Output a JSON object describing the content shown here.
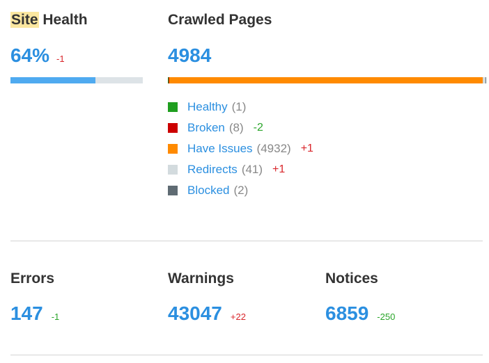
{
  "site_health": {
    "title_highlight": "Site",
    "title_rest": " Health",
    "value": "64%",
    "delta": "-1",
    "progress": 0.64,
    "colors": {
      "fill": "#4faaf0",
      "track": "#dde3e7"
    }
  },
  "crawled_pages": {
    "title": "Crawled Pages",
    "value": "4984",
    "legend": [
      {
        "label": "Healthy",
        "count": "(1)",
        "change": "",
        "color": "#1f9e1f"
      },
      {
        "label": "Broken",
        "count": "(8)",
        "change": "-2",
        "change_type": "pos",
        "color": "#cc0000"
      },
      {
        "label": "Have Issues",
        "count": "(4932)",
        "change": "+1",
        "change_type": "neg",
        "color": "#ff8a00"
      },
      {
        "label": "Redirects",
        "count": "(41)",
        "change": "+1",
        "change_type": "neg",
        "color": "#d3dbde"
      },
      {
        "label": "Blocked",
        "count": "(2)",
        "change": "",
        "color": "#5f6b73"
      }
    ]
  },
  "stats": {
    "errors": {
      "title": "Errors",
      "value": "147",
      "delta": "-1"
    },
    "warnings": {
      "title": "Warnings",
      "value": "43047",
      "delta": "+22"
    },
    "notices": {
      "title": "Notices",
      "value": "6859",
      "delta": "-250"
    }
  }
}
